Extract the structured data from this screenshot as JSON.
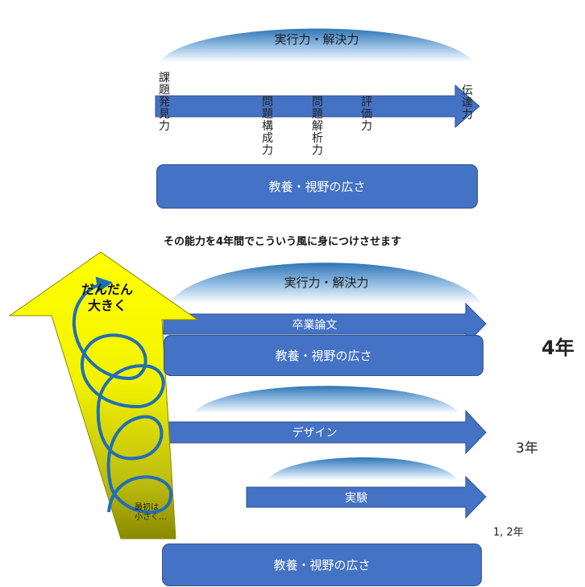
{
  "colors": {
    "accent_blue": "#4472c4",
    "border_blue": "#2f528f",
    "dome_blue": "#2e75b6",
    "yellow": "#ffff00",
    "olive": "#7f7f00",
    "swirl": "#1f6fb5"
  },
  "top_diagram": {
    "dome_label": "実行力・解決力",
    "arrow_labels": {
      "start": "課題発見力",
      "mid1": "問題構成力",
      "mid2": "問題解析力",
      "mid3": "評価力",
      "end": "伝達力"
    },
    "base_box": "教養・視野の広さ"
  },
  "caption": "その能力を4年間でこういう風に身につけさせます",
  "bottom_diagram": {
    "growth_arrow": {
      "top_label_line1": "だんだん",
      "top_label_line2": "大きく",
      "bottom_label_line1": "最初は",
      "bottom_label_line2": "小さく…"
    },
    "year4": {
      "dome_label": "実行力・解決力",
      "arrow_label": "卒業論文",
      "box_label": "教養・視野の広さ",
      "year_label": "4年"
    },
    "year3": {
      "arrow_label": "デザイン",
      "year_label": "3年"
    },
    "year12": {
      "arrow_label": "実験",
      "year_label": "1, 2年"
    },
    "base_box": "教養・視野の広さ"
  }
}
